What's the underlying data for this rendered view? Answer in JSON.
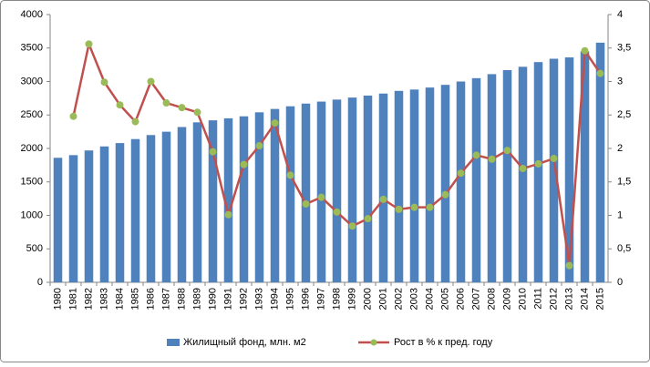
{
  "chart_data": {
    "type": "bar-line",
    "categories": [
      "1980",
      "1981",
      "1982",
      "1983",
      "1984",
      "1985",
      "1986",
      "1987",
      "1988",
      "1989",
      "1990",
      "1991",
      "1992",
      "1993",
      "1994",
      "1995",
      "1996",
      "1997",
      "1998",
      "1999",
      "2000",
      "2001",
      "2002",
      "2003",
      "2004",
      "2005",
      "2006",
      "2007",
      "2008",
      "2009",
      "2010",
      "2011",
      "2012",
      "2013",
      "2014",
      "2015"
    ],
    "series": [
      {
        "name": "Жилищный фонд, млн. м2",
        "type": "bar",
        "color": "#4f81bd",
        "values": [
          1860,
          1900,
          1970,
          2030,
          2080,
          2140,
          2200,
          2250,
          2320,
          2390,
          2420,
          2450,
          2480,
          2540,
          2590,
          2630,
          2670,
          2700,
          2730,
          2760,
          2790,
          2820,
          2860,
          2880,
          2910,
          2950,
          3000,
          3050,
          3110,
          3170,
          3220,
          3290,
          3340,
          3360,
          3450,
          3580
        ]
      },
      {
        "name": "Рост в % к пред. году",
        "type": "line",
        "axis": "y2",
        "color": "#c0504d",
        "marker_color": "#9bbb59",
        "values": [
          null,
          2.48,
          3.56,
          2.99,
          2.65,
          2.4,
          3.0,
          2.68,
          2.61,
          2.54,
          1.95,
          1.01,
          1.76,
          2.04,
          2.38,
          1.6,
          1.17,
          1.27,
          1.05,
          0.84,
          0.95,
          1.24,
          1.09,
          1.12,
          1.12,
          1.31,
          1.63,
          1.9,
          1.84,
          1.97,
          1.7,
          1.77,
          1.85,
          0.25,
          3.46,
          3.12
        ]
      }
    ],
    "ylim": [
      0,
      4000
    ],
    "yticks": [
      0,
      500,
      1000,
      1500,
      2000,
      2500,
      3000,
      3500,
      4000
    ],
    "y2lim": [
      0,
      4
    ],
    "y2ticks": [
      0,
      {
        "value": 0.5,
        "label": "0,5"
      },
      1,
      {
        "value": 1.5,
        "label": "1,5"
      },
      2,
      {
        "value": 2.5,
        "label": "2,5"
      },
      3,
      {
        "value": 3.5,
        "label": "3,5"
      },
      4
    ],
    "grid": false
  }
}
